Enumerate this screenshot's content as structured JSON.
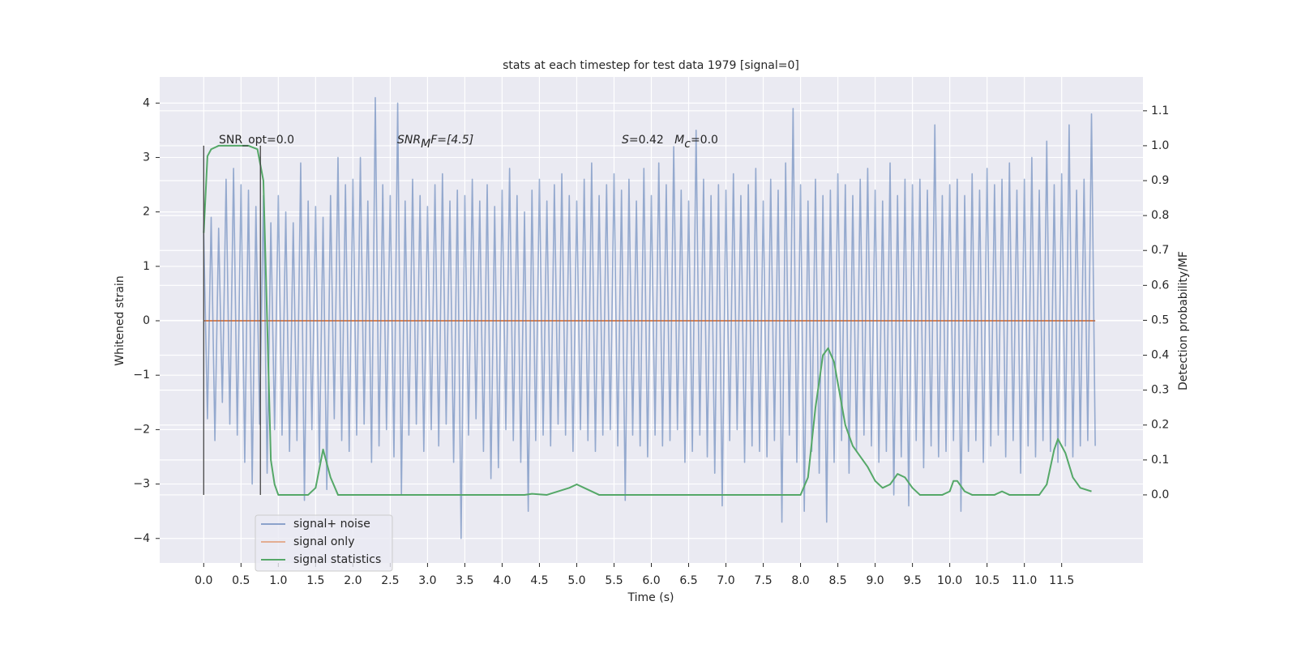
{
  "chart_data": {
    "type": "line",
    "title": "stats at each timestep for test data 1979 [signal=0]",
    "xlabel": "Time (s)",
    "ylabel": "Whitened strain",
    "y2label": "Detection probability/MF",
    "annotations": [
      [
        "SNR_opt=0.0"
      ],
      [
        "SNR",
        "M",
        "F=[4.5]"
      ],
      [
        "S",
        "=0.42   ",
        "M",
        "c",
        "=0.0"
      ]
    ],
    "xlim": [
      -0.59,
      12.59
    ],
    "ylim": [
      -4.45,
      4.48
    ],
    "y2lim": [
      -0.195,
      1.197
    ],
    "xticks": [
      {
        "value": 0,
        "label": "0.0"
      },
      0.5,
      {
        "value": 1,
        "label": "1.0"
      },
      1.5,
      {
        "value": 2,
        "label": "2.0"
      },
      2.5,
      {
        "value": 3,
        "label": "3.0"
      },
      3.5,
      {
        "value": 4,
        "label": "4.0"
      },
      4.5,
      {
        "value": 5,
        "label": "5.0"
      },
      5.5,
      {
        "value": 6,
        "label": "6.0"
      },
      6.5,
      {
        "value": 7,
        "label": "7.0"
      },
      7.5,
      {
        "value": 8,
        "label": "8.0"
      },
      8.5,
      {
        "value": 9,
        "label": "9.0"
      },
      9.5,
      {
        "value": 10,
        "label": "10.0"
      },
      10.5,
      {
        "value": 11,
        "label": "11.0"
      },
      11.5
    ],
    "yticks": [
      {
        "value": -4,
        "label": "−4"
      },
      {
        "value": -3,
        "label": "−3"
      },
      {
        "value": -2,
        "label": "−2"
      },
      {
        "value": -1,
        "label": "−1"
      },
      0,
      1,
      2,
      3,
      4
    ],
    "y2ticks": [
      {
        "value": 0,
        "label": "0.0"
      },
      0.1,
      0.2,
      0.3,
      0.4,
      0.5,
      0.6,
      0.7,
      0.8,
      0.9,
      {
        "value": 1,
        "label": "1.0"
      },
      1.1
    ],
    "grid": true,
    "legend": "lower left",
    "vlines": [
      0,
      0.76
    ],
    "vline_span": [
      0,
      1
    ],
    "vline_color": "#444444",
    "series": [
      {
        "name": "signal+ noise",
        "color": "#4c72b0",
        "axis": "y",
        "x": [
          0,
          0.05,
          0.1,
          0.15,
          0.2,
          0.25,
          0.3,
          0.35,
          0.4,
          0.45,
          0.5,
          0.55,
          0.6,
          0.65,
          0.7,
          0.75,
          0.8,
          0.85,
          0.9,
          0.95,
          1,
          1.05,
          1.1,
          1.15,
          1.2,
          1.25,
          1.3,
          1.35,
          1.4,
          1.45,
          1.5,
          1.55,
          1.6,
          1.65,
          1.7,
          1.75,
          1.8,
          1.85,
          1.9,
          1.95,
          2,
          2.05,
          2.1,
          2.15,
          2.2,
          2.25,
          2.3,
          2.35,
          2.4,
          2.45,
          2.5,
          2.55,
          2.6,
          2.65,
          2.7,
          2.75,
          2.8,
          2.85,
          2.9,
          2.95,
          3,
          3.05,
          3.1,
          3.15,
          3.2,
          3.25,
          3.3,
          3.35,
          3.4,
          3.45,
          3.5,
          3.55,
          3.6,
          3.65,
          3.7,
          3.75,
          3.8,
          3.85,
          3.9,
          3.95,
          4,
          4.05,
          4.1,
          4.15,
          4.2,
          4.25,
          4.3,
          4.35,
          4.4,
          4.45,
          4.5,
          4.55,
          4.6,
          4.65,
          4.7,
          4.75,
          4.8,
          4.85,
          4.9,
          4.95,
          5,
          5.05,
          5.1,
          5.15,
          5.2,
          5.25,
          5.3,
          5.35,
          5.4,
          5.45,
          5.5,
          5.55,
          5.6,
          5.65,
          5.7,
          5.75,
          5.8,
          5.85,
          5.9,
          5.95,
          6,
          6.05,
          6.1,
          6.15,
          6.2,
          6.25,
          6.3,
          6.35,
          6.4,
          6.45,
          6.5,
          6.55,
          6.6,
          6.65,
          6.7,
          6.75,
          6.8,
          6.85,
          6.9,
          6.95,
          7,
          7.05,
          7.1,
          7.15,
          7.2,
          7.25,
          7.3,
          7.35,
          7.4,
          7.45,
          7.5,
          7.55,
          7.6,
          7.65,
          7.7,
          7.75,
          7.8,
          7.85,
          7.9,
          7.95,
          8,
          8.05,
          8.1,
          8.15,
          8.2,
          8.25,
          8.3,
          8.35,
          8.4,
          8.45,
          8.5,
          8.55,
          8.6,
          8.65,
          8.7,
          8.75,
          8.8,
          8.85,
          8.9,
          8.95,
          9,
          9.05,
          9.1,
          9.15,
          9.2,
          9.25,
          9.3,
          9.35,
          9.4,
          9.45,
          9.5,
          9.55,
          9.6,
          9.65,
          9.7,
          9.75,
          9.8,
          9.85,
          9.9,
          9.95,
          10,
          10.05,
          10.1,
          10.15,
          10.2,
          10.25,
          10.3,
          10.35,
          10.4,
          10.45,
          10.5,
          10.55,
          10.6,
          10.65,
          10.7,
          10.75,
          10.8,
          10.85,
          10.9,
          10.95,
          11,
          11.05,
          11.1,
          11.15,
          11.2,
          11.25,
          11.3,
          11.35,
          11.4,
          11.45,
          11.5,
          11.55,
          11.6,
          11.65,
          11.7,
          11.75,
          11.8,
          11.85,
          11.9,
          11.95
        ],
        "values": [
          1.6,
          -1.8,
          1.9,
          -2.2,
          1.7,
          -1.5,
          2.6,
          -1.9,
          2.8,
          -2.1,
          2.5,
          -2.6,
          2.4,
          -3.0,
          2.1,
          -1.9,
          2.3,
          -2.8,
          1.8,
          -2.0,
          2.3,
          -2.1,
          2.0,
          -2.4,
          1.8,
          -2.2,
          2.9,
          -3.3,
          2.2,
          -2.0,
          2.1,
          -2.6,
          1.9,
          -3.1,
          2.3,
          -1.8,
          3.0,
          -2.2,
          2.5,
          -2.4,
          2.6,
          -2.1,
          3.0,
          -1.9,
          2.2,
          -2.6,
          4.1,
          -2.3,
          2.5,
          -2.0,
          2.3,
          -2.5,
          4.0,
          -3.2,
          2.2,
          -2.1,
          2.6,
          -1.9,
          2.3,
          -2.4,
          2.1,
          -2.0,
          2.5,
          -2.3,
          2.7,
          -1.9,
          2.2,
          -2.6,
          2.4,
          -4.0,
          2.3,
          -2.1,
          2.6,
          -1.8,
          2.2,
          -2.4,
          2.5,
          -2.9,
          2.1,
          -2.7,
          2.4,
          -2.0,
          2.8,
          -2.2,
          2.3,
          -2.6,
          2.0,
          -3.5,
          2.4,
          -2.2,
          2.6,
          -2.1,
          2.2,
          -2.3,
          2.5,
          -1.9,
          2.7,
          -2.1,
          2.3,
          -2.4,
          2.2,
          -2.0,
          2.6,
          -2.2,
          2.9,
          -2.4,
          2.3,
          -2.1,
          2.5,
          -2.0,
          2.7,
          -2.3,
          2.4,
          -3.3,
          2.6,
          -2.1,
          2.2,
          -2.3,
          2.8,
          -2.5,
          2.3,
          -2.1,
          2.9,
          -2.3,
          2.5,
          -2.2,
          3.2,
          -2.0,
          2.4,
          -2.6,
          2.2,
          -2.4,
          3.5,
          -2.1,
          2.6,
          -2.5,
          2.3,
          -2.8,
          2.5,
          -3.4,
          2.4,
          -2.2,
          2.7,
          -2.0,
          2.3,
          -2.6,
          2.5,
          -2.3,
          2.8,
          -2.4,
          2.2,
          -2.5,
          2.6,
          -2.2,
          2.4,
          -3.7,
          2.9,
          -2.1,
          3.9,
          -2.6,
          2.5,
          -3.5,
          2.2,
          -2.4,
          2.6,
          -2.8,
          2.3,
          -3.7,
          2.4,
          -2.6,
          2.7,
          -2.2,
          2.5,
          -2.8,
          2.3,
          -2.4,
          2.6,
          -2.1,
          2.8,
          -2.3,
          2.4,
          -2.6,
          2.2,
          -2.4,
          2.9,
          -3.2,
          2.3,
          -2.5,
          2.6,
          -3.4,
          2.5,
          -2.2,
          2.6,
          -2.7,
          2.4,
          -2.3,
          3.6,
          -2.5,
          2.3,
          -2.4,
          2.5,
          -2.2,
          2.6,
          -3.5,
          2.3,
          -2.4,
          2.7,
          -2.2,
          2.4,
          -2.6,
          2.8,
          -2.3,
          2.5,
          -2.1,
          2.6,
          -2.5,
          2.9,
          -2.2,
          2.4,
          -2.8,
          2.6,
          -2.3,
          3.0,
          -2.5,
          2.4,
          -2.2,
          3.3,
          -2.4,
          2.5,
          -2.6,
          2.7,
          -2.3,
          3.6,
          -2.5,
          2.4,
          -2.3,
          2.6,
          -2.2,
          3.8,
          -2.3
        ]
      },
      {
        "name": "signal only",
        "color": "#dd8452",
        "axis": "y",
        "x": [
          0,
          11.95
        ],
        "values": [
          0,
          0
        ]
      },
      {
        "name": "signal statistics",
        "color": "#55a868",
        "axis": "y2",
        "x": [
          0,
          0.05,
          0.1,
          0.2,
          0.6,
          0.72,
          0.8,
          0.85,
          0.9,
          0.95,
          1.0,
          1.4,
          1.5,
          1.6,
          1.7,
          1.8,
          4.3,
          4.4,
          4.6,
          4.9,
          5.0,
          5.1,
          5.3,
          8.0,
          8.1,
          8.2,
          8.3,
          8.37,
          8.45,
          8.6,
          8.7,
          8.9,
          9.0,
          9.1,
          9.2,
          9.3,
          9.4,
          9.5,
          9.6,
          9.9,
          10.0,
          10.05,
          10.1,
          10.2,
          10.3,
          10.6,
          10.7,
          10.8,
          11.2,
          11.3,
          11.4,
          11.45,
          11.55,
          11.65,
          11.75,
          11.9
        ],
        "values": [
          0.75,
          0.97,
          0.99,
          1.0,
          1.0,
          0.99,
          0.9,
          0.5,
          0.1,
          0.03,
          0.0,
          0.0,
          0.02,
          0.13,
          0.05,
          0.0,
          0.0,
          0.003,
          0.0,
          0.02,
          0.03,
          0.02,
          0.0,
          0.0,
          0.05,
          0.25,
          0.4,
          0.42,
          0.38,
          0.2,
          0.14,
          0.08,
          0.04,
          0.02,
          0.03,
          0.06,
          0.05,
          0.02,
          0.0,
          0.0,
          0.01,
          0.04,
          0.04,
          0.01,
          0.0,
          0.0,
          0.01,
          0.0,
          0.0,
          0.03,
          0.13,
          0.16,
          0.12,
          0.05,
          0.02,
          0.01
        ]
      }
    ]
  }
}
